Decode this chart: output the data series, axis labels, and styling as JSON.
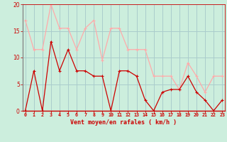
{
  "x": [
    0,
    1,
    2,
    3,
    4,
    5,
    6,
    7,
    8,
    9,
    10,
    11,
    12,
    13,
    14,
    15,
    16,
    17,
    18,
    19,
    20,
    21,
    22,
    23
  ],
  "vent_moyen": [
    0,
    7.5,
    0,
    13,
    7.5,
    11.5,
    7.5,
    7.5,
    6.5,
    6.5,
    0,
    7.5,
    7.5,
    6.5,
    2,
    0,
    3.5,
    4,
    4,
    6.5,
    3.5,
    2,
    0,
    2
  ],
  "en_rafales": [
    17,
    11.5,
    11.5,
    20,
    15.5,
    15.5,
    11.5,
    15.5,
    17,
    9.5,
    15.5,
    15.5,
    11.5,
    11.5,
    11.5,
    6.5,
    6.5,
    6.5,
    4,
    9,
    6.5,
    3.5,
    6.5,
    6.5
  ],
  "color_moyen": "#cc0000",
  "color_rafales": "#ffaaaa",
  "background": "#cceedd",
  "grid_color": "#aacccc",
  "xlabel": "Vent moyen/en rafales ( km/h )",
  "xlabel_color": "#cc0000",
  "ylabel_vals": [
    0,
    5,
    10,
    15,
    20
  ],
  "xlim": [
    -0.3,
    23.3
  ],
  "ylim": [
    0,
    20
  ],
  "tick_color": "#cc0000",
  "axis_color": "#cc0000",
  "marker_size_moyen": 3,
  "marker_size_rafales": 3
}
